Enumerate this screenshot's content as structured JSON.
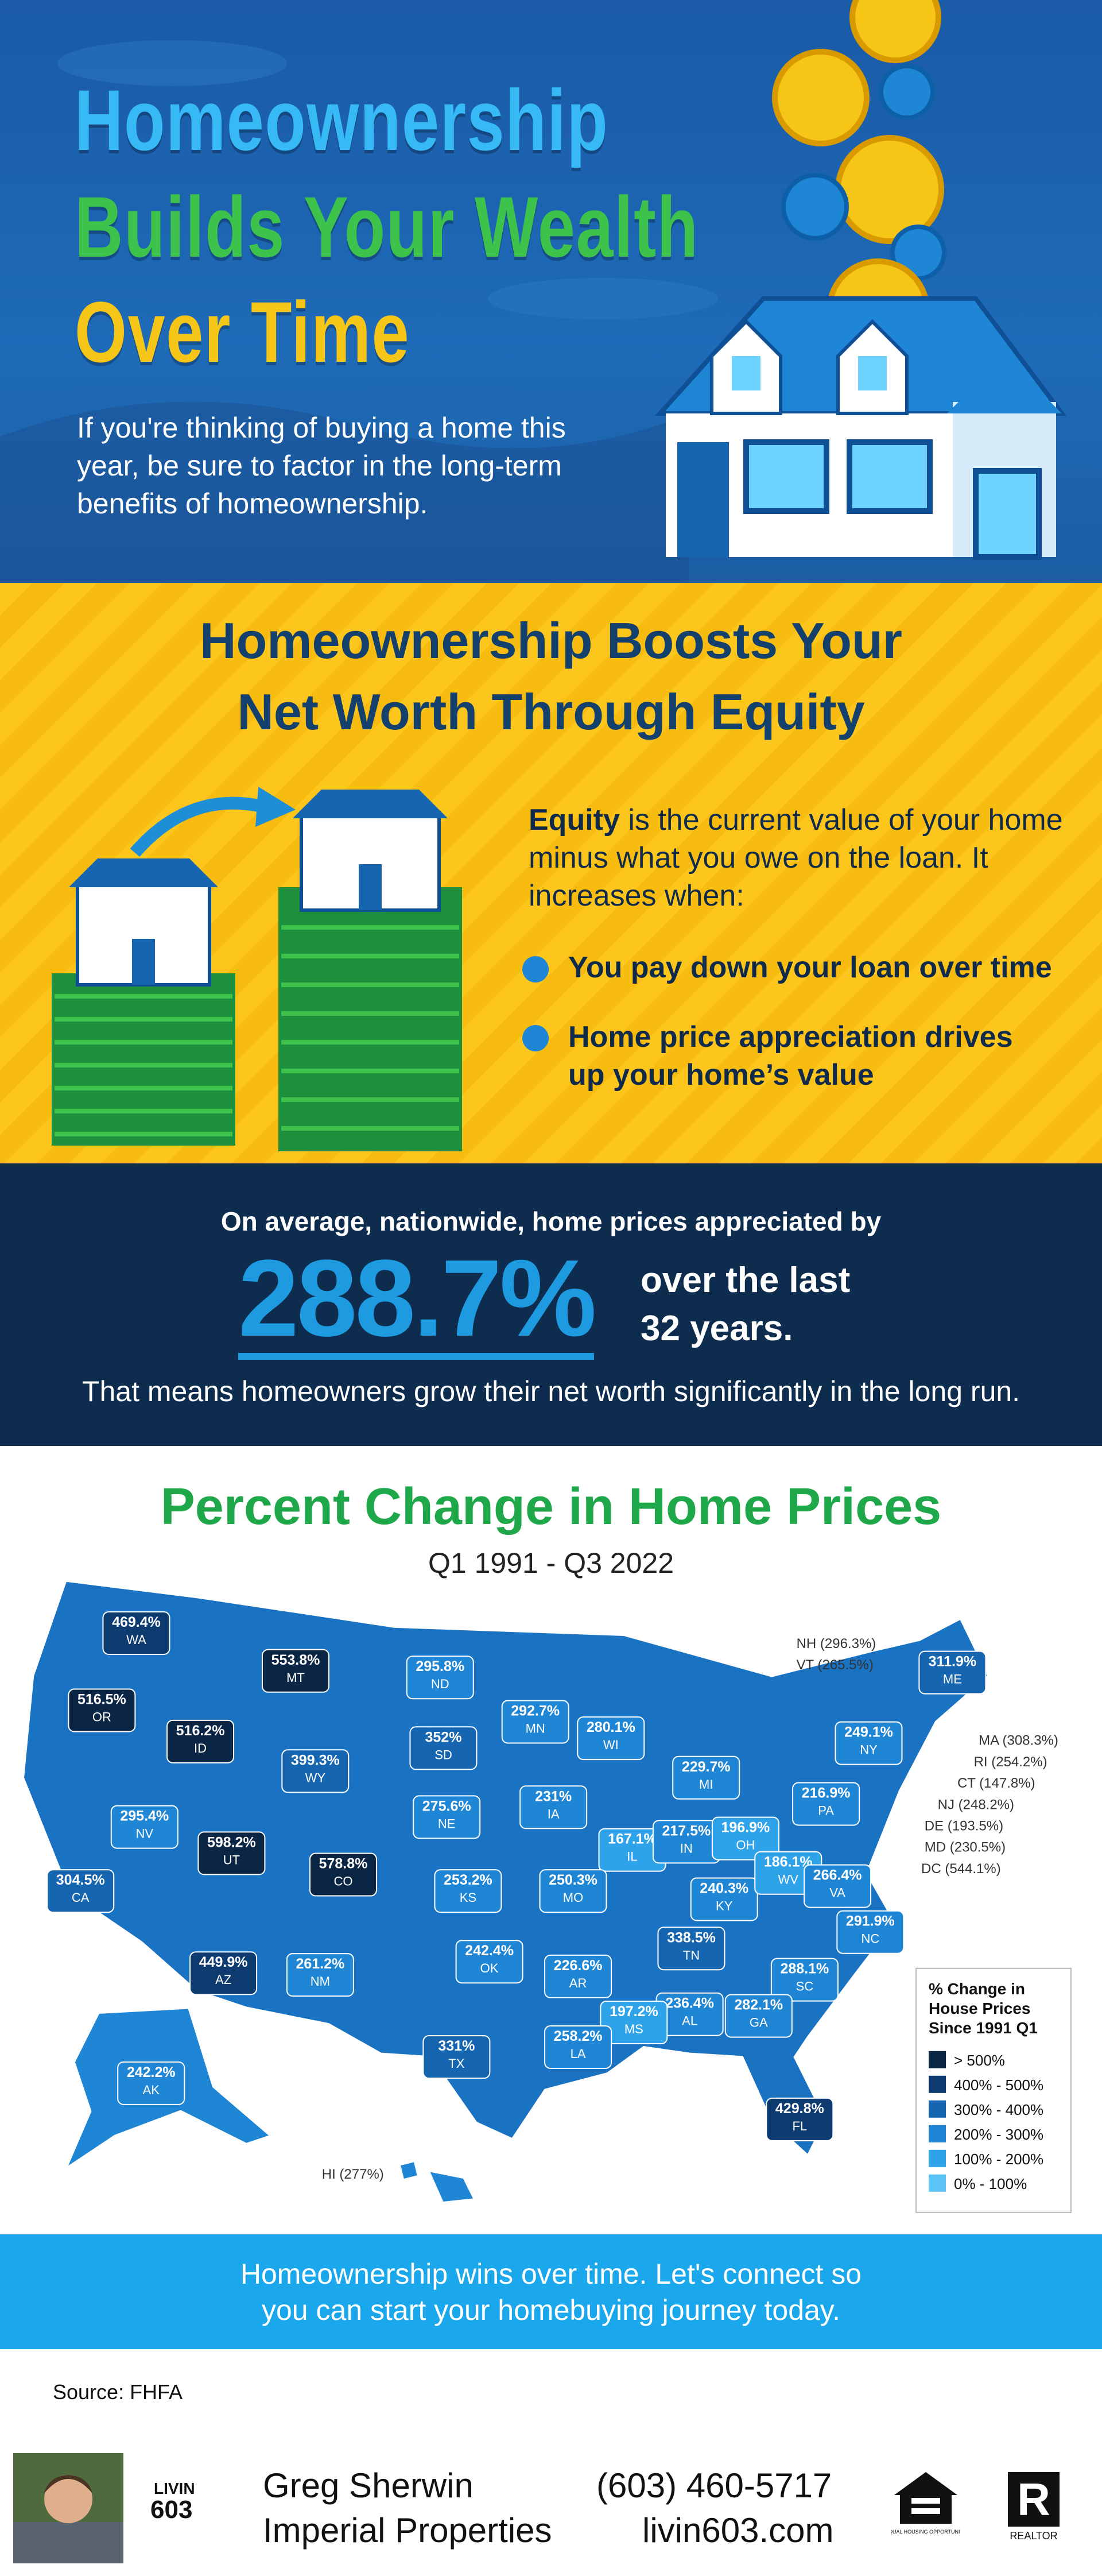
{
  "header": {
    "title_lines": [
      "Homeownership",
      "Builds Your Wealth",
      "Over Time"
    ],
    "subtitle_lines": [
      "If you're thinking of buying a home this",
      "year, be sure to factor in the long-term",
      "benefits of homeownership."
    ]
  },
  "equity": {
    "heading_lines": [
      "Homeownership Boosts Your",
      "Net Worth Through Equity"
    ],
    "lead_bold": "Equity",
    "lead_rest": "is the current value of your home minus what you owe on the loan. It increases when:",
    "bullets": [
      "You pay down your loan over time",
      "Home price appreciation drives up your home’s value"
    ]
  },
  "stat": {
    "intro": "On average, nationwide, home prices appreciated by",
    "figure": "288.7%",
    "figure_suffix_lines": [
      "over the last",
      "32 years."
    ],
    "conclusion": "That means homeowners grow their net worth significantly in the long run."
  },
  "map": {
    "title": "Percent Change in Home Prices",
    "subtitle": "Q1 1991 - Q3 2022",
    "states": [
      {
        "abbr": "WA",
        "value": "469.4%",
        "color": "#0d3b70"
      },
      {
        "abbr": "OR",
        "value": "516.5%",
        "color": "#0b2545"
      },
      {
        "abbr": "ID",
        "value": "516.2%",
        "color": "#0b2545"
      },
      {
        "abbr": "MT",
        "value": "553.8%",
        "color": "#0b2545"
      },
      {
        "abbr": "WY",
        "value": "399.3%",
        "color": "#1565b0"
      },
      {
        "abbr": "ND",
        "value": "295.8%",
        "color": "#1f86d6"
      },
      {
        "abbr": "SD",
        "value": "352%",
        "color": "#1565b0"
      },
      {
        "abbr": "NE",
        "value": "275.6%",
        "color": "#1f86d6"
      },
      {
        "abbr": "MN",
        "value": "292.7%",
        "color": "#1f86d6"
      },
      {
        "abbr": "WI",
        "value": "280.1%",
        "color": "#1f86d6"
      },
      {
        "abbr": "IA",
        "value": "231%",
        "color": "#1f86d6"
      },
      {
        "abbr": "IL",
        "value": "167.1%",
        "color": "#2ea3ea"
      },
      {
        "abbr": "IN",
        "value": "217.5%",
        "color": "#1f86d6"
      },
      {
        "abbr": "MI",
        "value": "229.7%",
        "color": "#1f86d6"
      },
      {
        "abbr": "OH",
        "value": "196.9%",
        "color": "#2ea3ea"
      },
      {
        "abbr": "PA",
        "value": "216.9%",
        "color": "#1f86d6"
      },
      {
        "abbr": "NY",
        "value": "249.1%",
        "color": "#1f86d6"
      },
      {
        "abbr": "ME",
        "value": "311.9%",
        "color": "#1565b0"
      },
      {
        "abbr": "NV",
        "value": "295.4%",
        "color": "#1f86d6"
      },
      {
        "abbr": "CA",
        "value": "304.5%",
        "color": "#1565b0"
      },
      {
        "abbr": "UT",
        "value": "598.2%",
        "color": "#0b2545"
      },
      {
        "abbr": "CO",
        "value": "578.8%",
        "color": "#0b2545"
      },
      {
        "abbr": "AZ",
        "value": "449.9%",
        "color": "#0d3b70"
      },
      {
        "abbr": "NM",
        "value": "261.2%",
        "color": "#1f86d6"
      },
      {
        "abbr": "KS",
        "value": "253.2%",
        "color": "#1f86d6"
      },
      {
        "abbr": "MO",
        "value": "250.3%",
        "color": "#1f86d6"
      },
      {
        "abbr": "KY",
        "value": "240.3%",
        "color": "#1f86d6"
      },
      {
        "abbr": "WV",
        "value": "186.1%",
        "color": "#2ea3ea"
      },
      {
        "abbr": "VA",
        "value": "266.4%",
        "color": "#1f86d6"
      },
      {
        "abbr": "TN",
        "value": "338.5%",
        "color": "#1565b0"
      },
      {
        "abbr": "NC",
        "value": "291.9%",
        "color": "#1f86d6"
      },
      {
        "abbr": "OK",
        "value": "242.4%",
        "color": "#1f86d6"
      },
      {
        "abbr": "AR",
        "value": "226.6%",
        "color": "#1f86d6"
      },
      {
        "abbr": "SC",
        "value": "288.1%",
        "color": "#1f86d6"
      },
      {
        "abbr": "GA",
        "value": "282.1%",
        "color": "#1f86d6"
      },
      {
        "abbr": "AL",
        "value": "236.4%",
        "color": "#1f86d6"
      },
      {
        "abbr": "MS",
        "value": "197.2%",
        "color": "#2ea3ea"
      },
      {
        "abbr": "LA",
        "value": "258.2%",
        "color": "#1f86d6"
      },
      {
        "abbr": "TX",
        "value": "331%",
        "color": "#1565b0"
      },
      {
        "abbr": "FL",
        "value": "429.8%",
        "color": "#0d3b70"
      },
      {
        "abbr": "AK",
        "value": "242.2%",
        "color": "#1f86d6"
      }
    ],
    "notes": [
      "NH (296.3%)",
      "VT (265.5%)",
      "MA (308.3%)",
      "RI (254.2%)",
      "CT (147.8%)",
      "NJ (248.2%)",
      "DE (193.5%)",
      "MD (230.5%)",
      "DC (544.1%)",
      "HI (277%)"
    ],
    "legend": {
      "title_lines": [
        "% Change in",
        "House Prices",
        "Since 1991 Q1"
      ],
      "items": [
        {
          "label": "> 500%",
          "color": "#0b2545"
        },
        {
          "label": "400% - 500%",
          "color": "#0d3b70"
        },
        {
          "label": "300% - 400%",
          "color": "#1565b0"
        },
        {
          "label": "200% - 300%",
          "color": "#1f86d6"
        },
        {
          "label": "100% - 200%",
          "color": "#2ea3ea"
        },
        {
          "label": "0% - 100%",
          "color": "#5cc4f5"
        }
      ]
    }
  },
  "cta": {
    "lines": [
      "Homeownership wins over time. Let's connect so",
      "you can start your homebuying journey today."
    ]
  },
  "source": "Source: FHFA",
  "footer": {
    "logo_top": "LIVIN",
    "logo_bottom": "603",
    "name": "Greg Sherwin",
    "company": "Imperial Properties",
    "phone": "(603) 460-5717",
    "website": "livin603.com",
    "equal_housing": "EQUAL HOUSING OPPORTUNITY",
    "realtor": "REALTOR"
  }
}
